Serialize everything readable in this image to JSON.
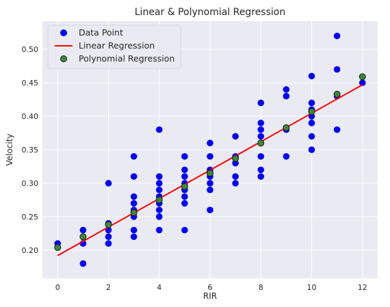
{
  "chart_data": {
    "type": "scatter",
    "title": "Linear & Polynomial Regression",
    "xlabel": "RIR",
    "ylabel": "Velocity",
    "xlim": [
      -0.6,
      12.6
    ],
    "ylim": [
      0.158,
      0.542
    ],
    "xticks": [
      0,
      2,
      4,
      6,
      8,
      10,
      12
    ],
    "yticks": [
      0.2,
      0.25,
      0.3,
      0.35,
      0.4,
      0.45,
      0.5
    ],
    "ytick_labels": [
      "0.20",
      "0.25",
      "0.30",
      "0.35",
      "0.40",
      "0.45",
      "0.50"
    ],
    "grid": true,
    "legend_position": "top-left",
    "colors": {
      "background": "#eaeaf2",
      "grid": "#ffffff",
      "data": "#0000ff",
      "linear": "#ff0000",
      "poly_fill": "#3a8a3a",
      "poly_edge": "#1a1a1a"
    },
    "series": [
      {
        "name": "Data Point",
        "kind": "scatter",
        "points": [
          [
            0,
            0.21
          ],
          [
            1,
            0.18
          ],
          [
            1,
            0.21
          ],
          [
            1,
            0.22
          ],
          [
            1,
            0.23
          ],
          [
            2,
            0.21
          ],
          [
            2,
            0.22
          ],
          [
            2,
            0.23
          ],
          [
            2,
            0.24
          ],
          [
            2,
            0.3
          ],
          [
            3,
            0.22
          ],
          [
            3,
            0.23
          ],
          [
            3,
            0.25
          ],
          [
            3,
            0.26
          ],
          [
            3,
            0.27
          ],
          [
            3,
            0.28
          ],
          [
            3,
            0.31
          ],
          [
            3,
            0.34
          ],
          [
            4,
            0.23
          ],
          [
            4,
            0.25
          ],
          [
            4,
            0.26
          ],
          [
            4,
            0.27
          ],
          [
            4,
            0.28
          ],
          [
            4,
            0.29
          ],
          [
            4,
            0.3
          ],
          [
            4,
            0.31
          ],
          [
            4,
            0.38
          ],
          [
            5,
            0.23
          ],
          [
            5,
            0.27
          ],
          [
            5,
            0.28
          ],
          [
            5,
            0.29
          ],
          [
            5,
            0.3
          ],
          [
            5,
            0.31
          ],
          [
            5,
            0.32
          ],
          [
            5,
            0.34
          ],
          [
            6,
            0.26
          ],
          [
            6,
            0.29
          ],
          [
            6,
            0.3
          ],
          [
            6,
            0.31
          ],
          [
            6,
            0.32
          ],
          [
            6,
            0.34
          ],
          [
            6,
            0.36
          ],
          [
            7,
            0.3
          ],
          [
            7,
            0.31
          ],
          [
            7,
            0.33
          ],
          [
            7,
            0.34
          ],
          [
            7,
            0.37
          ],
          [
            8,
            0.31
          ],
          [
            8,
            0.32
          ],
          [
            8,
            0.34
          ],
          [
            8,
            0.36
          ],
          [
            8,
            0.37
          ],
          [
            8,
            0.38
          ],
          [
            8,
            0.39
          ],
          [
            8,
            0.42
          ],
          [
            9,
            0.34
          ],
          [
            9,
            0.38
          ],
          [
            9,
            0.43
          ],
          [
            9,
            0.44
          ],
          [
            10,
            0.35
          ],
          [
            10,
            0.37
          ],
          [
            10,
            0.39
          ],
          [
            10,
            0.4
          ],
          [
            10,
            0.41
          ],
          [
            10,
            0.42
          ],
          [
            10,
            0.46
          ],
          [
            11,
            0.38
          ],
          [
            11,
            0.43
          ],
          [
            11,
            0.47
          ],
          [
            11,
            0.52
          ],
          [
            12,
            0.45
          ]
        ]
      },
      {
        "name": "Linear Regression",
        "kind": "line",
        "points": [
          [
            0,
            0.192
          ],
          [
            12,
            0.447
          ]
        ]
      },
      {
        "name": "Polynomial Regression",
        "kind": "scatter",
        "points": [
          [
            0,
            0.204
          ],
          [
            1,
            0.22
          ],
          [
            2,
            0.238
          ],
          [
            3,
            0.256
          ],
          [
            4,
            0.275
          ],
          [
            5,
            0.295
          ],
          [
            6,
            0.315
          ],
          [
            7,
            0.337
          ],
          [
            8,
            0.36
          ],
          [
            9,
            0.383
          ],
          [
            10,
            0.407
          ],
          [
            11,
            0.433
          ],
          [
            12,
            0.459
          ]
        ]
      }
    ]
  }
}
